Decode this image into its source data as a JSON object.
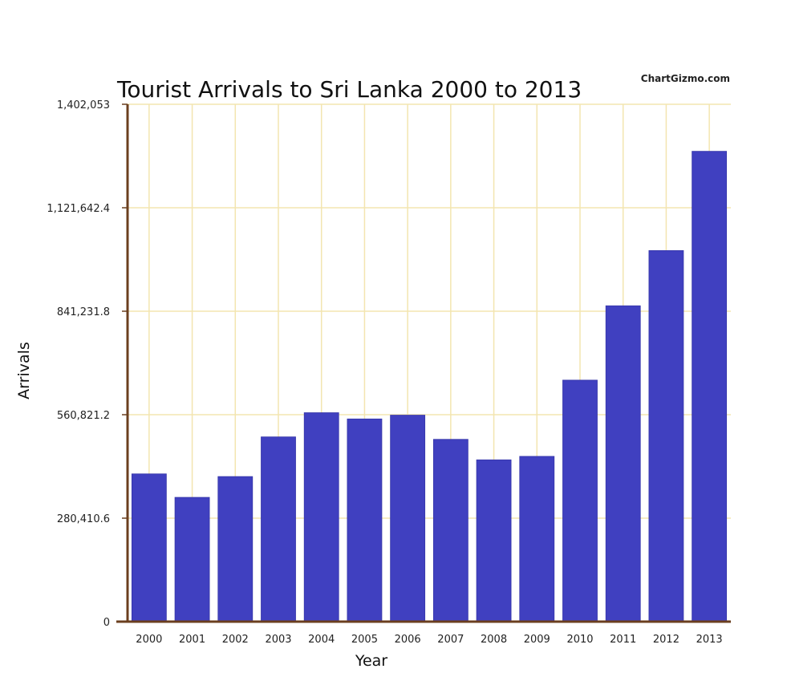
{
  "watermark": "ChartGizmo.com",
  "chart_data": {
    "type": "bar",
    "title": "Tourist Arrivals to Sri Lanka 2000 to 2013",
    "xlabel": "Year",
    "ylabel": "Arrivals",
    "categories": [
      "2000",
      "2001",
      "2002",
      "2003",
      "2004",
      "2005",
      "2006",
      "2007",
      "2008",
      "2009",
      "2010",
      "2011",
      "2012",
      "2013"
    ],
    "values": [
      400414,
      336794,
      393171,
      500642,
      566202,
      549308,
      559603,
      494008,
      438475,
      447890,
      654476,
      855975,
      1005605,
      1274593
    ],
    "yticks": [
      "0",
      "280,410.6",
      "560,821.2",
      "841,231.8",
      "1,121,642.4",
      "1,402,053"
    ],
    "ylim": [
      0,
      1402053
    ],
    "grid": true,
    "colors": {
      "bar": "#4040c0",
      "grid": "#f3e5b0",
      "axis": "#6b3f1f"
    }
  }
}
